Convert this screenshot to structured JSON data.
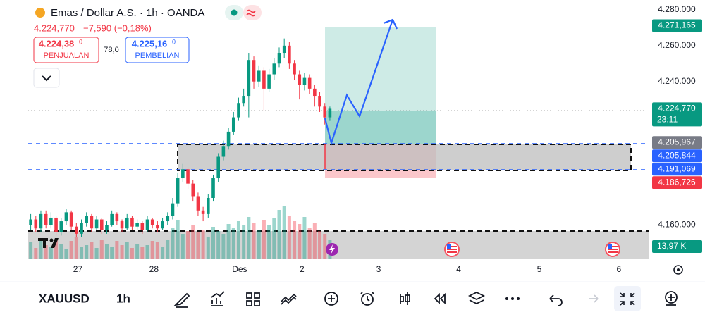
{
  "header": {
    "title": "Emas / Dollar A.S. · 1h · OANDA",
    "price": "4.224,770",
    "change": "−7,590 (−0,18%)",
    "sell_price": "4.224,38",
    "sell_sup": "0",
    "sell_label": "PENJUALAN",
    "spread": "78,0",
    "buy_price": "4.225,16",
    "buy_sup": "0",
    "buy_label": "PEMBELIAN"
  },
  "chart_data": {
    "type": "candlestick",
    "up_color": "#089981",
    "down_color": "#f23645",
    "open": [
      4160000,
      4163000,
      4158000,
      4166000,
      4160000,
      4164000,
      4156000,
      4162000,
      4167000,
      4159000,
      4155000,
      4161000,
      4165000,
      4158000,
      4163000,
      4157000,
      4160000,
      4166000,
      4162000,
      4158000,
      4164000,
      4159000,
      4161000,
      4157000,
      4163000,
      4160000,
      4158000,
      4162000,
      4165000,
      4172000,
      4186000,
      4191000,
      4183000,
      4176000,
      4168000,
      4166000,
      4175000,
      4186000,
      4198000,
      4204000,
      4212000,
      4220000,
      4228000,
      4232000,
      4252000,
      4240000,
      4246000,
      4236000,
      4244000,
      4250000,
      4256000,
      4260000,
      4250000,
      4244000,
      4238000,
      4242000,
      4236000,
      4232000,
      4226000,
      4220000
    ],
    "high": [
      4166000,
      4165000,
      4168000,
      4168000,
      4167000,
      4165000,
      4164000,
      4169000,
      4168000,
      4161000,
      4163000,
      4167000,
      4166000,
      4165000,
      4164000,
      4162000,
      4168000,
      4167000,
      4163000,
      4166000,
      4165000,
      4163000,
      4162000,
      4165000,
      4164000,
      4162000,
      4164000,
      4167000,
      4175000,
      4189000,
      4194000,
      4192000,
      4185000,
      4178000,
      4170000,
      4177000,
      4188000,
      4200000,
      4207000,
      4214000,
      4223000,
      4231000,
      4236000,
      4256000,
      4254000,
      4249000,
      4248000,
      4247000,
      4253000,
      4259000,
      4264000,
      4262000,
      4252000,
      4246000,
      4245000,
      4244000,
      4238000,
      4234000,
      4228000,
      4226000
    ],
    "low": [
      4157000,
      4156000,
      4156000,
      4158000,
      4158000,
      4154000,
      4154000,
      4160000,
      4157000,
      4153000,
      4153000,
      4159000,
      4156000,
      4157000,
      4155000,
      4155000,
      4159000,
      4160000,
      4156000,
      4157000,
      4157000,
      4157000,
      4155000,
      4156000,
      4158000,
      4156000,
      4157000,
      4160000,
      4163000,
      4170000,
      4184000,
      4180000,
      4173000,
      4165000,
      4162000,
      4164000,
      4173000,
      4184000,
      4196000,
      4202000,
      4210000,
      4218000,
      4226000,
      4220000,
      4236000,
      4237000,
      4224000,
      4234000,
      4241000,
      4248000,
      4253000,
      4247000,
      4241000,
      4230000,
      4235000,
      4233000,
      4226000,
      4223000,
      4216000,
      4218000
    ],
    "close": [
      4163000,
      4158000,
      4166000,
      4160000,
      4164000,
      4156000,
      4162000,
      4167000,
      4159000,
      4155000,
      4161000,
      4165000,
      4158000,
      4163000,
      4157000,
      4160000,
      4166000,
      4162000,
      4158000,
      4164000,
      4159000,
      4161000,
      4157000,
      4163000,
      4160000,
      4158000,
      4162000,
      4165000,
      4172000,
      4186000,
      4191000,
      4183000,
      4176000,
      4168000,
      4166000,
      4175000,
      4186000,
      4198000,
      4204000,
      4212000,
      4220000,
      4228000,
      4232000,
      4252000,
      4240000,
      4246000,
      4236000,
      4244000,
      4250000,
      4256000,
      4260000,
      4250000,
      4244000,
      4238000,
      4242000,
      4236000,
      4232000,
      4226000,
      4220000,
      4224770
    ],
    "volume": [
      12,
      8,
      15,
      10,
      9,
      14,
      11,
      7,
      13,
      16,
      9,
      10,
      12,
      8,
      14,
      11,
      9,
      13,
      10,
      12,
      8,
      11,
      9,
      10,
      13,
      12,
      9,
      14,
      22,
      28,
      18,
      20,
      24,
      19,
      21,
      16,
      23,
      20,
      18,
      25,
      22,
      27,
      24,
      30,
      26,
      21,
      28,
      24,
      29,
      35,
      38,
      31,
      27,
      25,
      30,
      22,
      26,
      20,
      18,
      13.97
    ],
    "volume_lim": [
      0,
      40
    ],
    "volume_label": "13,97 K",
    "xlim": [
      -0.5,
      122
    ],
    "ylim": [
      4140000,
      4285500
    ],
    "yticks": [
      {
        "value": 4280000,
        "label": "4.280.000"
      },
      {
        "value": 4260000,
        "label": "4.260.000"
      },
      {
        "value": 4240000,
        "label": "4.240.000"
      },
      {
        "value": 4160000,
        "label": "4.160.000"
      }
    ],
    "xticks": [
      {
        "value": 9.3,
        "label": "27"
      },
      {
        "value": 24.3,
        "label": "28"
      },
      {
        "value": 41.2,
        "label": "Des"
      },
      {
        "value": 53.5,
        "label": "2"
      },
      {
        "value": 68.6,
        "label": "3"
      },
      {
        "value": 84.4,
        "label": "4"
      },
      {
        "value": 100.3,
        "label": "5"
      },
      {
        "value": 116,
        "label": "6"
      }
    ],
    "price_labels": [
      {
        "value": 4271165,
        "label": "4.271,165",
        "color": "#089981"
      },
      {
        "value": 4224770,
        "label": "4.224,770",
        "sub": "23:11",
        "color": "#089981"
      },
      {
        "value": 4205967,
        "label": "4.205,967",
        "color": "#787b86"
      },
      {
        "value": 4205844,
        "label": "4.205,844",
        "color": "#2962ff"
      },
      {
        "value": 4191069,
        "label": "4.191,069",
        "color": "#2962ff"
      },
      {
        "value": 4186726,
        "label": "4.186,726",
        "color": "#f23645"
      }
    ]
  },
  "toolbar": {
    "symbol": "XAUUSD",
    "interval": "1h"
  }
}
